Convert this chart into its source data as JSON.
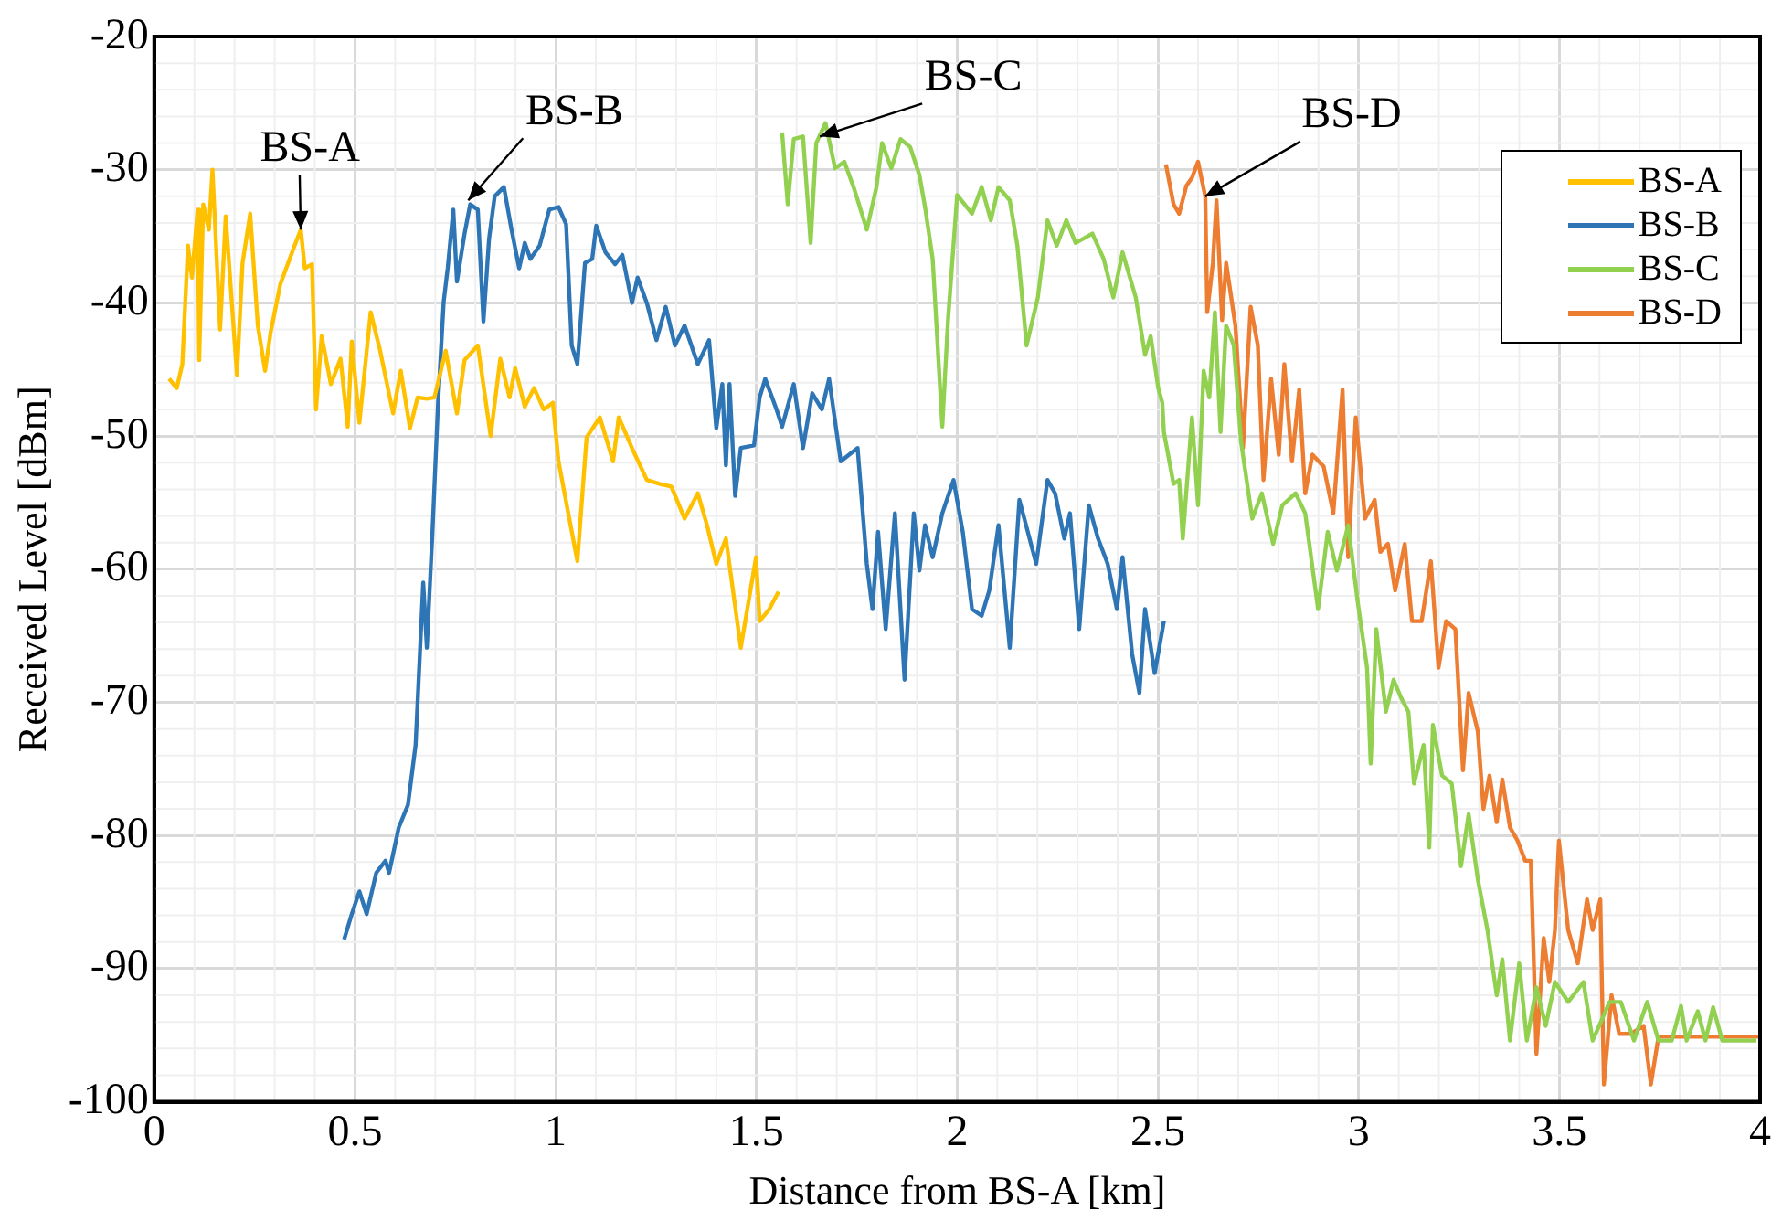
{
  "chart_data": {
    "type": "line",
    "xlabel": "Distance from BS-A [km]",
    "ylabel": "Received Level [dBm]",
    "xlim": [
      0,
      4
    ],
    "xticks": [
      0,
      0.5,
      1,
      1.5,
      2,
      2.5,
      3,
      3.5,
      4
    ],
    "ylim": [
      -100,
      -20
    ],
    "yticks": [
      -100,
      -90,
      -80,
      -70,
      -60,
      -50,
      -40,
      -30,
      -20
    ],
    "grid": true,
    "legend": "top right",
    "marker": "none",
    "line_style": "solid",
    "annotations": [
      {
        "text": "BS-A",
        "x": 0.365,
        "y": -34.5
      },
      {
        "text": "BS-B",
        "x": 0.782,
        "y": -32.3
      },
      {
        "text": "BS-C",
        "x": 1.658,
        "y": -27.5
      },
      {
        "text": "BS-D",
        "x": 2.618,
        "y": -32.0
      }
    ],
    "series": [
      {
        "name": "BS-A",
        "color": "#ffc000",
        "x": [
          0.037,
          0.056,
          0.07,
          0.084,
          0.094,
          0.108,
          0.112,
          0.122,
          0.136,
          0.145,
          0.164,
          0.178,
          0.206,
          0.22,
          0.239,
          0.258,
          0.276,
          0.29,
          0.314,
          0.347,
          0.365,
          0.375,
          0.393,
          0.403,
          0.417,
          0.44,
          0.464,
          0.482,
          0.492,
          0.511,
          0.539,
          0.562,
          0.595,
          0.614,
          0.637,
          0.656,
          0.679,
          0.698,
          0.726,
          0.754,
          0.773,
          0.806,
          0.838,
          0.862,
          0.885,
          0.899,
          0.923,
          0.946,
          0.97,
          0.993,
          1.007,
          1.054,
          1.077,
          1.11,
          1.143,
          1.157,
          1.19,
          1.227,
          1.26,
          1.288,
          1.321,
          1.354,
          1.377,
          1.4,
          1.424,
          1.461,
          1.485,
          1.499,
          1.508,
          1.532,
          1.555
        ],
        "values": [
          -45.7,
          -46.4,
          -44.6,
          -35.7,
          -38.1,
          -33.0,
          -44.3,
          -32.6,
          -34.5,
          -30.0,
          -42.0,
          -33.5,
          -45.4,
          -37.0,
          -33.3,
          -41.7,
          -45.1,
          -42.2,
          -38.6,
          -35.9,
          -34.5,
          -37.4,
          -37.1,
          -48.0,
          -42.5,
          -46.1,
          -44.2,
          -49.3,
          -42.9,
          -49.0,
          -40.7,
          -43.5,
          -48.3,
          -45.1,
          -49.4,
          -47.1,
          -47.2,
          -47.1,
          -43.6,
          -48.3,
          -44.3,
          -43.2,
          -50.0,
          -44.2,
          -47.1,
          -44.9,
          -47.8,
          -46.4,
          -48.0,
          -47.5,
          -51.9,
          -59.4,
          -50.1,
          -48.6,
          -51.9,
          -48.6,
          -50.9,
          -53.3,
          -53.6,
          -53.8,
          -56.2,
          -54.3,
          -56.7,
          -59.6,
          -57.7,
          -65.9,
          -61.6,
          -59.1,
          -63.9,
          -63.0,
          -61.7
        ]
      },
      {
        "name": "BS-B",
        "color": "#2e75b6",
        "x": [
          0.473,
          0.492,
          0.511,
          0.529,
          0.553,
          0.576,
          0.585,
          0.609,
          0.632,
          0.651,
          0.67,
          0.679,
          0.693,
          0.707,
          0.721,
          0.731,
          0.745,
          0.754,
          0.773,
          0.787,
          0.806,
          0.82,
          0.834,
          0.848,
          0.871,
          0.89,
          0.909,
          0.923,
          0.937,
          0.96,
          0.984,
          1.007,
          1.026,
          1.04,
          1.054,
          1.073,
          1.091,
          1.101,
          1.124,
          1.148,
          1.166,
          1.19,
          1.204,
          1.227,
          1.251,
          1.274,
          1.297,
          1.321,
          1.354,
          1.382,
          1.4,
          1.415,
          1.424,
          1.433,
          1.447,
          1.461,
          1.494,
          1.508,
          1.522,
          1.55,
          1.564,
          1.593,
          1.616,
          1.639,
          1.663,
          1.681,
          1.71,
          1.752,
          1.775,
          1.789,
          1.803,
          1.822,
          1.845,
          1.869,
          1.892,
          1.906,
          1.92,
          1.939,
          1.963,
          1.991,
          2.014,
          2.037,
          2.061,
          2.08,
          2.103,
          2.131,
          2.155,
          2.197,
          2.225,
          2.244,
          2.267,
          2.281,
          2.304,
          2.328,
          2.351,
          2.375,
          2.398,
          2.412,
          2.436,
          2.454,
          2.468,
          2.492,
          2.515
        ],
        "values": [
          -87.8,
          -85.9,
          -84.2,
          -85.9,
          -82.8,
          -81.9,
          -82.8,
          -79.4,
          -77.7,
          -73.2,
          -61.0,
          -65.9,
          -57.2,
          -47.5,
          -39.9,
          -37.4,
          -33.0,
          -38.4,
          -34.8,
          -32.6,
          -33.0,
          -41.4,
          -35.2,
          -32.0,
          -31.3,
          -34.5,
          -37.4,
          -35.5,
          -36.7,
          -35.7,
          -33.0,
          -32.8,
          -34.1,
          -43.2,
          -44.6,
          -37.0,
          -36.7,
          -34.2,
          -36.2,
          -37.1,
          -36.4,
          -40.0,
          -38.1,
          -40.0,
          -42.8,
          -40.3,
          -43.2,
          -41.7,
          -44.6,
          -42.8,
          -49.4,
          -46.1,
          -52.2,
          -46.1,
          -54.5,
          -50.9,
          -50.7,
          -47.1,
          -45.7,
          -48.0,
          -49.3,
          -46.1,
          -50.9,
          -46.8,
          -48.0,
          -45.7,
          -51.9,
          -50.9,
          -59.6,
          -63.0,
          -57.2,
          -64.5,
          -55.8,
          -68.3,
          -55.8,
          -60.1,
          -56.7,
          -59.1,
          -55.8,
          -53.3,
          -57.2,
          -63.0,
          -63.5,
          -61.6,
          -56.7,
          -65.9,
          -54.8,
          -59.6,
          -53.3,
          -54.3,
          -57.7,
          -55.8,
          -64.5,
          -55.2,
          -57.7,
          -59.6,
          -63.0,
          -59.1,
          -66.4,
          -69.3,
          -63.0,
          -67.8,
          -63.9
        ]
      },
      {
        "name": "BS-C",
        "color": "#92d050",
        "x": [
          1.564,
          1.578,
          1.593,
          1.616,
          1.635,
          1.649,
          1.672,
          1.696,
          1.719,
          1.742,
          1.775,
          1.799,
          1.813,
          1.836,
          1.859,
          1.883,
          1.906,
          1.92,
          1.939,
          1.963,
          1.977,
          2.0,
          2.037,
          2.061,
          2.084,
          2.103,
          2.131,
          2.15,
          2.173,
          2.201,
          2.225,
          2.248,
          2.272,
          2.295,
          2.337,
          2.365,
          2.389,
          2.412,
          2.445,
          2.468,
          2.482,
          2.501,
          2.511,
          2.515,
          2.539,
          2.553,
          2.562,
          2.585,
          2.6,
          2.614,
          2.628,
          2.642,
          2.656,
          2.67,
          2.689,
          2.707,
          2.735,
          2.759,
          2.787,
          2.81,
          2.843,
          2.867,
          2.899,
          2.923,
          2.946,
          2.974,
          2.998,
          3.021,
          3.03,
          3.044,
          3.068,
          3.087,
          3.105,
          3.124,
          3.138,
          3.162,
          3.176,
          3.185,
          3.208,
          3.232,
          3.255,
          3.274,
          3.297,
          3.321,
          3.344,
          3.358,
          3.377,
          3.4,
          3.419,
          3.443,
          3.466,
          3.489,
          3.522,
          3.56,
          3.583,
          3.625,
          3.653,
          3.686,
          3.719,
          3.747,
          3.78,
          3.803,
          3.817,
          3.845,
          3.864,
          3.883,
          3.906,
          3.991
        ],
        "values": [
          -27.2,
          -32.6,
          -27.7,
          -27.5,
          -35.5,
          -28.0,
          -26.5,
          -29.9,
          -29.4,
          -31.3,
          -34.5,
          -31.3,
          -28.0,
          -29.9,
          -27.7,
          -28.3,
          -30.4,
          -32.8,
          -36.7,
          -49.3,
          -41.4,
          -31.9,
          -33.3,
          -31.3,
          -33.8,
          -31.3,
          -32.3,
          -35.7,
          -43.2,
          -39.6,
          -33.8,
          -35.7,
          -33.8,
          -35.5,
          -34.8,
          -36.7,
          -39.6,
          -36.2,
          -39.6,
          -43.9,
          -42.5,
          -46.4,
          -47.5,
          -49.7,
          -53.6,
          -53.3,
          -57.7,
          -48.6,
          -55.2,
          -45.1,
          -47.1,
          -40.7,
          -49.7,
          -41.7,
          -43.2,
          -50.4,
          -56.2,
          -54.3,
          -58.1,
          -55.2,
          -54.3,
          -55.8,
          -63.0,
          -57.2,
          -60.1,
          -56.7,
          -62.5,
          -67.4,
          -74.6,
          -64.5,
          -70.7,
          -68.3,
          -69.6,
          -70.7,
          -76.1,
          -73.2,
          -80.9,
          -71.7,
          -75.5,
          -76.1,
          -82.3,
          -78.4,
          -83.3,
          -87.1,
          -92.0,
          -89.3,
          -95.4,
          -89.6,
          -95.4,
          -91.4,
          -94.3,
          -91.0,
          -92.5,
          -91.0,
          -95.4,
          -92.5,
          -92.5,
          -95.4,
          -92.5,
          -95.4,
          -95.4,
          -92.8,
          -95.4,
          -93.2,
          -95.4,
          -92.9,
          -95.4,
          -95.4
        ]
      },
      {
        "name": "BS-D",
        "color": "#ed7d31",
        "x": [
          2.52,
          2.539,
          2.553,
          2.571,
          2.585,
          2.6,
          2.618,
          2.623,
          2.637,
          2.646,
          2.66,
          2.67,
          2.693,
          2.712,
          2.731,
          2.749,
          2.763,
          2.782,
          2.801,
          2.815,
          2.834,
          2.852,
          2.867,
          2.885,
          2.913,
          2.937,
          2.96,
          2.974,
          2.993,
          3.016,
          3.04,
          3.054,
          3.073,
          3.091,
          3.115,
          3.133,
          3.157,
          3.18,
          3.199,
          3.218,
          3.241,
          3.26,
          3.274,
          3.297,
          3.311,
          3.326,
          3.344,
          3.358,
          3.377,
          3.396,
          3.415,
          3.429,
          3.443,
          3.461,
          3.475,
          3.489,
          3.499,
          3.522,
          3.546,
          3.569,
          3.583,
          3.602,
          3.611,
          3.63,
          3.649,
          3.677,
          3.71,
          3.728,
          3.747,
          3.864,
          4.0
        ],
        "values": [
          -29.6,
          -32.6,
          -33.3,
          -31.2,
          -30.6,
          -29.4,
          -32.0,
          -40.7,
          -37.0,
          -32.3,
          -41.3,
          -37.0,
          -41.7,
          -50.9,
          -40.3,
          -43.2,
          -53.3,
          -45.7,
          -51.4,
          -44.6,
          -51.9,
          -46.5,
          -54.3,
          -51.4,
          -52.3,
          -55.8,
          -46.5,
          -59.1,
          -48.6,
          -56.2,
          -54.8,
          -58.7,
          -58.1,
          -61.6,
          -58.1,
          -63.9,
          -63.9,
          -59.4,
          -67.4,
          -63.9,
          -64.5,
          -75.1,
          -69.3,
          -72.2,
          -78.0,
          -75.5,
          -79.0,
          -75.8,
          -79.4,
          -80.4,
          -81.9,
          -81.9,
          -96.4,
          -87.7,
          -91.0,
          -87.1,
          -80.4,
          -87.1,
          -89.6,
          -84.8,
          -87.1,
          -84.8,
          -98.7,
          -92.0,
          -94.9,
          -94.9,
          -94.3,
          -98.7,
          -95.1,
          -95.1,
          -95.1
        ]
      }
    ]
  }
}
